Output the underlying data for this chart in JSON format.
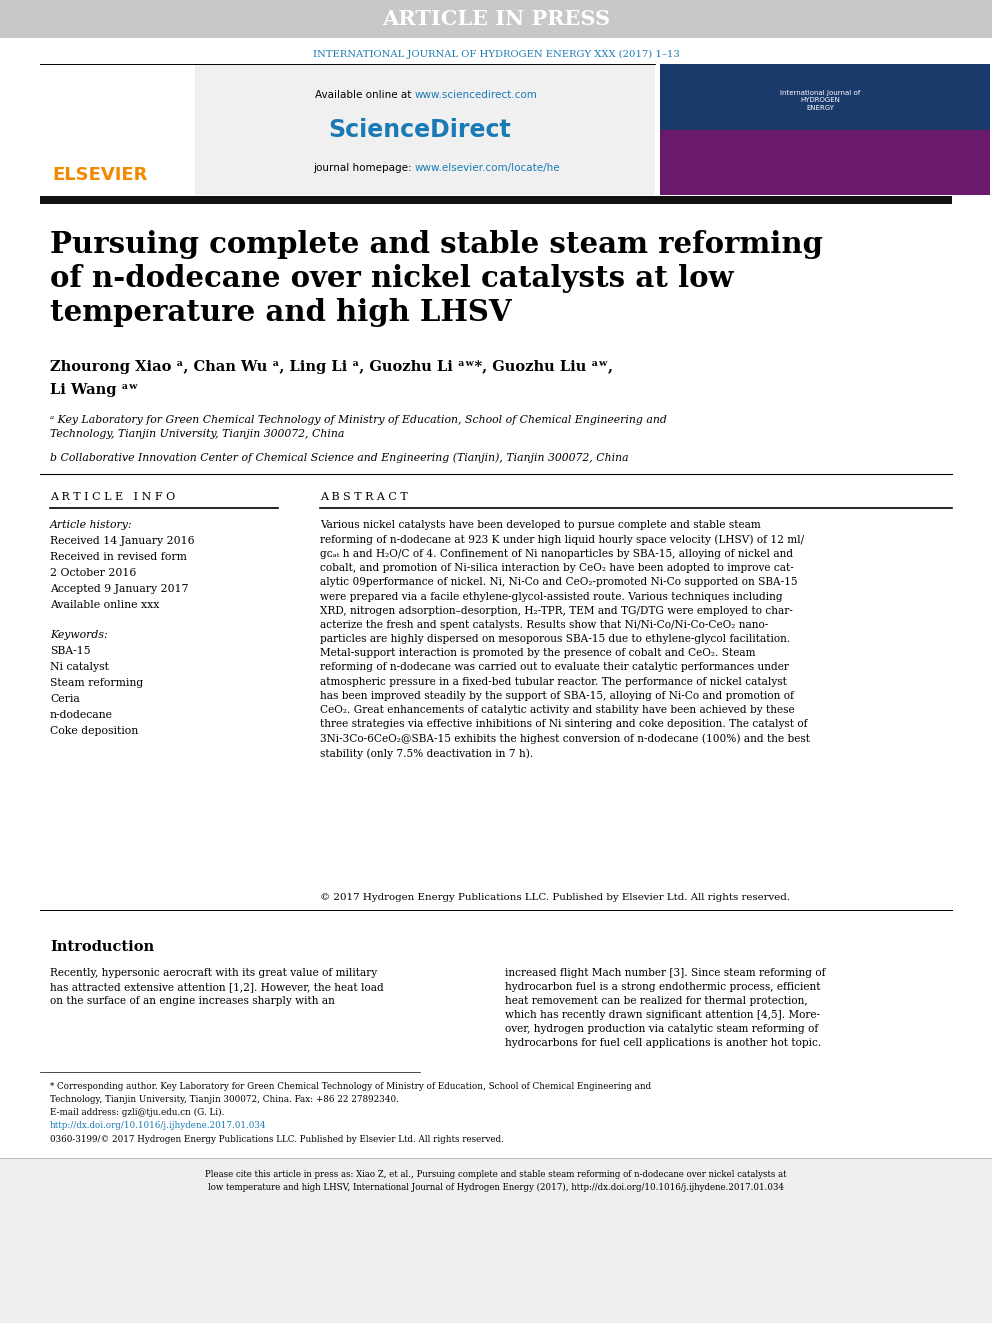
{
  "fig_width": 9.92,
  "fig_height": 13.23,
  "bg_color": "#ffffff",
  "header_bar_color": "#c8c8c8",
  "header_text": "ARTICLE IN PRESS",
  "header_text_color": "#ffffff",
  "journal_line": "INTERNATIONAL JOURNAL OF HYDROGEN ENERGY XXX (2017) 1–13",
  "journal_line_color": "#1a7ab5",
  "dark_bar_color": "#111111",
  "title_text_line1": "Pursuing complete and stable steam reforming",
  "title_text_line2": "of n-dodecane over nickel catalysts at low",
  "title_text_line3": "temperature and high LHSV",
  "affil_a": "ᵃ Key Laboratory for Green Chemical Technology of Ministry of Education, School of Chemical Engineering and\nTechnology, Tianjin University, Tianjin 300072, China",
  "affil_b": "b Collaborative Innovation Center of Chemical Science and Engineering (Tianjin), Tianjin 300072, China",
  "article_info_header": "A R T I C L E   I N F O",
  "abstract_header": "A B S T R A C T",
  "article_history_label": "Article history:",
  "received_1": "Received 14 January 2016",
  "received_revised": "Received in revised form",
  "received_revised_date": "2 October 2016",
  "accepted": "Accepted 9 January 2017",
  "available": "Available online xxx",
  "keywords_label": "Keywords:",
  "keywords": [
    "SBA-15",
    "Ni catalyst",
    "Steam reforming",
    "Ceria",
    "n-dodecane",
    "Coke deposition"
  ],
  "abstract_text": "Various nickel catalysts have been developed to pursue complete and stable steam\nreforming of n-dodecane at 923 K under high liquid hourly space velocity (LHSV) of 12 ml/\ngᴄₐₜ h and H₂O/C of 4. Confinement of Ni nanoparticles by SBA-15, alloying of nickel and\ncobalt, and promotion of Ni-silica interaction by CeO₂ have been adopted to improve cat-\nalytic 09performance of nickel. Ni, Ni-Co and CeO₂-promoted Ni-Co supported on SBA-15\nwere prepared via a facile ethylene-glycol-assisted route. Various techniques including\nXRD, nitrogen adsorption–desorption, H₂-TPR, TEM and TG/DTG were employed to char-\nacterize the fresh and spent catalysts. Results show that Ni/Ni-Co/Ni-Co-CeO₂ nano-\nparticles are highly dispersed on mesoporous SBA-15 due to ethylene-glycol facilitation.\nMetal-support interaction is promoted by the presence of cobalt and CeO₂. Steam\nreforming of n-dodecane was carried out to evaluate their catalytic performances under\natmospheric pressure in a fixed-bed tubular reactor. The performance of nickel catalyst\nhas been improved steadily by the support of SBA-15, alloying of Ni-Co and promotion of\nCeO₂. Great enhancements of catalytic activity and stability have been achieved by these\nthree strategies via effective inhibitions of Ni sintering and coke deposition. The catalyst of\n3Ni-3Co-6CeO₂@SBA-15 exhibits the highest conversion of n-dodecane (100%) and the best\nstability (only 7.5% deactivation in 7 h).",
  "copyright_text": "© 2017 Hydrogen Energy Publications LLC. Published by Elsevier Ltd. All rights reserved.",
  "intro_header": "Introduction",
  "intro_text_left": "Recently, hypersonic aerocraft with its great value of military\nhas attracted extensive attention [1,2]. However, the heat load\non the surface of an engine increases sharply with an",
  "intro_text_right": "increased flight Mach number [3]. Since steam reforming of\nhydrocarbon fuel is a strong endothermic process, efficient\nheat removement can be realized for thermal protection,\nwhich has recently drawn significant attention [4,5]. More-\nover, hydrogen production via catalytic steam reforming of\nhydrocarbons for fuel cell applications is another hot topic.",
  "footnote_star": "* Corresponding author. Key Laboratory for Green Chemical Technology of Ministry of Education, School of Chemical Engineering and\nTechnology, Tianjin University, Tianjin 300072, China. Fax: +86 22 27892340.",
  "footnote_email": "E-mail address: gzli@tju.edu.cn (G. Li).",
  "footnote_doi": "http://dx.doi.org/10.1016/j.ijhydene.2017.01.034",
  "footnote_issn": "0360-3199/© 2017 Hydrogen Energy Publications LLC. Published by Elsevier Ltd. All rights reserved.",
  "bottom_bar_text": "Please cite this article in press as: Xiao Z, et al., Pursuing complete and stable steam reforming of n-dodecane over nickel catalysts at\nlow temperature and high LHSV, International Journal of Hydrogen Energy (2017), http://dx.doi.org/10.1016/j.ijhydene.2017.01.034",
  "elsevier_color": "#f28a00",
  "sciencedirect_color": "#1a7ab5",
  "link_color": "#1a7ab5",
  "right_box_top_color": "#1a3a6b",
  "right_box_bot_color": "#6a1a6a"
}
